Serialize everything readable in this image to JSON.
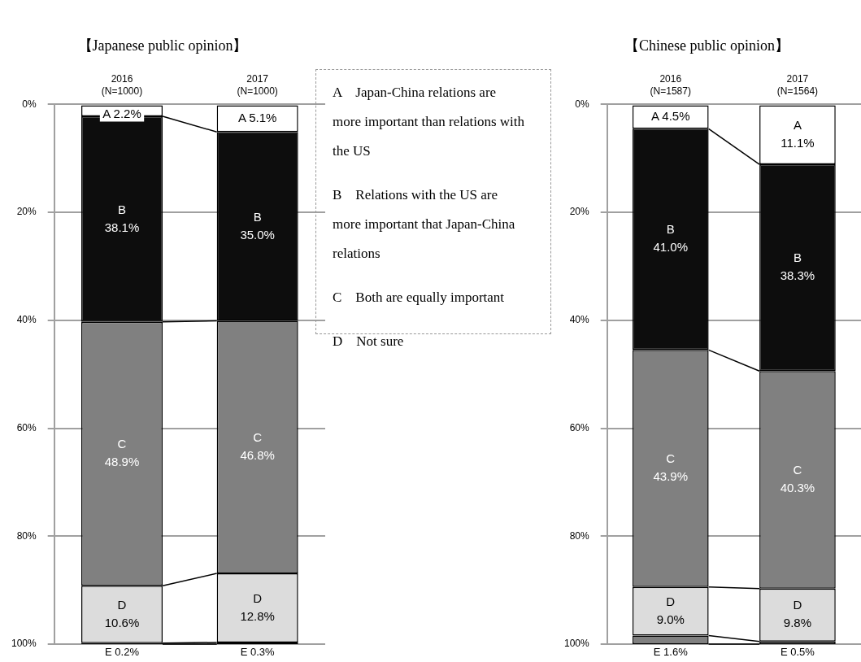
{
  "chart_data": [
    {
      "type": "bar",
      "title": "【Japanese public opinion】",
      "categories": [
        "2016\n(N=1000)",
        "2017\n(N=1000)"
      ],
      "stacked": true,
      "ylim": [
        100,
        0
      ],
      "yticks": [
        {
          "value": 0,
          "label": "0%"
        },
        {
          "value": 20,
          "label": "20%"
        },
        {
          "value": 40,
          "label": "40%"
        },
        {
          "value": 60,
          "label": "60%"
        },
        {
          "value": 80,
          "label": "80%"
        },
        {
          "value": 100,
          "label": "100%"
        }
      ],
      "grid": "y",
      "series": [
        {
          "color": "#ffffff",
          "values": [
            2.2,
            5.1
          ],
          "value_labels": [
            "A 2.2%",
            "A 5.1%"
          ]
        },
        {
          "color": "#0d0d0d",
          "values": [
            38.1,
            35.0
          ],
          "value_labels": [
            "B\n38.1%",
            "B\n35.0%"
          ]
        },
        {
          "color": "#808080",
          "values": [
            48.9,
            46.8
          ],
          "value_labels": [
            "C\n48.9%",
            "C\n46.8%"
          ]
        },
        {
          "color": "#dcdcdc",
          "values": [
            10.6,
            12.8
          ],
          "value_labels": [
            "D\n10.6%",
            "D\n12.8%"
          ]
        },
        {
          "color": "#000000",
          "values": [
            0.2,
            0.3
          ],
          "value_labels": [
            "E 0.2%",
            "E 0.3%"
          ]
        }
      ],
      "annotations": [
        "A　Japan-China relations are more important than relations with the US",
        "B　Relations with the US are more important that Japan-China relations",
        "C　Both are equally important",
        "D　Not sure"
      ]
    },
    {
      "type": "bar",
      "title": "【Chinese public opinion】",
      "categories": [
        "2016\n(N=1587)",
        "2017\n(N=1564)"
      ],
      "stacked": true,
      "ylim": [
        100,
        0
      ],
      "yticks": [
        {
          "value": 0,
          "label": "0%"
        },
        {
          "value": 20,
          "label": "20%"
        },
        {
          "value": 40,
          "label": "40%"
        },
        {
          "value": 60,
          "label": "60%"
        },
        {
          "value": 80,
          "label": "80%"
        },
        {
          "value": 100,
          "label": "100%"
        }
      ],
      "grid": "y",
      "series": [
        {
          "color": "#ffffff",
          "values": [
            4.5,
            11.1
          ],
          "value_labels": [
            "A 4.5%",
            "A\n11.1%"
          ]
        },
        {
          "color": "#0d0d0d",
          "values": [
            41.0,
            38.3
          ],
          "value_labels": [
            "B\n41.0%",
            "B\n38.3%"
          ]
        },
        {
          "color": "#808080",
          "values": [
            43.9,
            40.3
          ],
          "value_labels": [
            "C\n43.9%",
            "C\n40.3%"
          ]
        },
        {
          "color": "#dcdcdc",
          "values": [
            9.0,
            9.8
          ],
          "value_labels": [
            "D\n9.0%",
            "D\n9.8%"
          ]
        },
        {
          "colors": [
            "#808080",
            "#ffffff"
          ],
          "values": [
            1.6,
            0.5
          ],
          "value_labels": [
            "E 1.6%",
            "E 0.5%"
          ]
        }
      ]
    }
  ]
}
